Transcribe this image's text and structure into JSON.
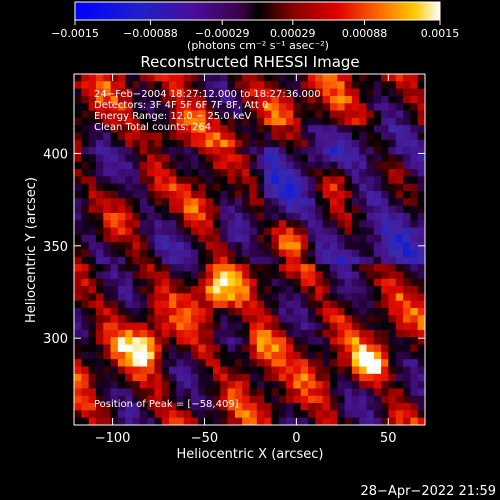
{
  "chart_data": {
    "type": "heatmap",
    "title": "Reconstructed RHESSI Image",
    "xlabel": "Heliocentric X (arcsec)",
    "ylabel": "Heliocentric Y (arcsec)",
    "xlim": [
      -121,
      70
    ],
    "ylim": [
      253,
      443
    ],
    "x_ticks": [
      -100,
      -50,
      0,
      50
    ],
    "x_tick_labels": [
      "−100",
      "−50",
      "0",
      "50"
    ],
    "y_ticks": [
      300,
      350,
      400
    ],
    "y_tick_labels": [
      "300",
      "350",
      "400"
    ],
    "colorbar": {
      "range": [
        -0.0015,
        0.0015
      ],
      "ticks": [
        -0.0015,
        -0.00088,
        -0.00029,
        0.00029,
        0.00088,
        0.0015
      ],
      "tick_labels": [
        "−0.0015",
        "−0.00088",
        "−0.00029",
        "0.00029",
        "0.00088",
        "0.0015"
      ],
      "units": "(photons cm⁻² s⁻¹ asec⁻²)"
    },
    "annotations": [
      "24−Feb−2004 18:27:12.000 to 18:27:36.000",
      "Detectors: 3F 4F 5F 6F 7F 8F, Att 0",
      "Energy Range: 12.0 − 25.0 keV",
      "Clean    Total counts: 264"
    ],
    "peak_label": "Position of Peak = [−58,409]",
    "peak_position": [
      -58,
      409
    ],
    "timestamp": "28−Apr−2022 21:59"
  }
}
